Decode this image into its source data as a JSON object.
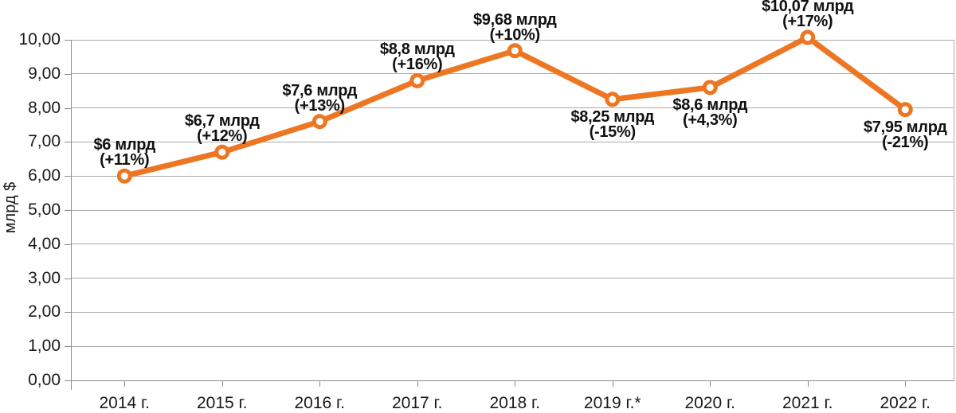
{
  "chart_data": {
    "type": "line",
    "title": "",
    "xlabel": "",
    "ylabel": "млрд $",
    "ylim": [
      0,
      10
    ],
    "ytick_step": 1,
    "ytick_labels": [
      "0,00",
      "1,00",
      "2,00",
      "3,00",
      "4,00",
      "5,00",
      "6,00",
      "7,00",
      "8,00",
      "9,00",
      "10,00"
    ],
    "categories": [
      "2014 г.",
      "2015 г.",
      "2016 г.",
      "2017 г.",
      "2018 г.",
      "2019 г.*",
      "2020 г.",
      "2021 г.",
      "2022 г."
    ],
    "series": [
      {
        "name": "",
        "values": [
          6,
          6.7,
          7.6,
          8.8,
          9.68,
          8.25,
          8.6,
          10.07,
          7.95
        ]
      }
    ],
    "point_labels": [
      {
        "lines": [
          "$6 млрд",
          "(+11%)"
        ],
        "side": "above"
      },
      {
        "lines": [
          "$6,7 млрд",
          "(+12%)"
        ],
        "side": "above"
      },
      {
        "lines": [
          "$7,6 млрд",
          "(+13%)"
        ],
        "side": "above"
      },
      {
        "lines": [
          "$8,8 млрд",
          "(+16%)"
        ],
        "side": "above"
      },
      {
        "lines": [
          "$9,68 млрд",
          "(+10%)"
        ],
        "side": "above"
      },
      {
        "lines": [
          "$8,25 млрд",
          "(-15%)"
        ],
        "side": "below"
      },
      {
        "lines": [
          "$8,6 млрд",
          "(+4,3%)"
        ],
        "side": "below"
      },
      {
        "lines": [
          "$10,07 млрд",
          "(+17%)"
        ],
        "side": "above"
      },
      {
        "lines": [
          "$7,95 млрд",
          "(-21%)"
        ],
        "side": "below"
      }
    ],
    "grid": true,
    "legend": "none",
    "colors": {
      "line": "#ED7623",
      "marker_fill": "#FFFFFF",
      "gridline": "#ABABAB",
      "axis": "#8C8C8C",
      "text": "#1A1A1A"
    }
  }
}
